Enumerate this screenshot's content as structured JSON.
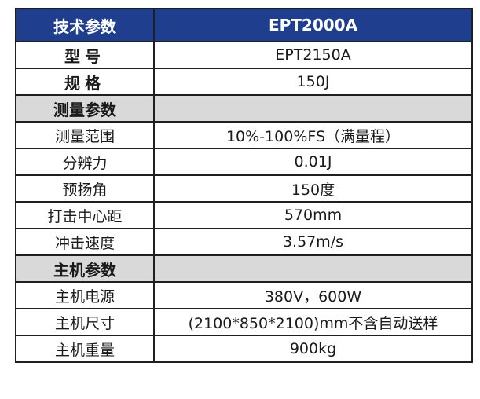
{
  "header": {
    "label": "技术参数",
    "value": "EPT2000A"
  },
  "rows": [
    {
      "label": "型号",
      "value": "EPT2150A"
    },
    {
      "label": "规格",
      "value": "150J"
    }
  ],
  "measurement": {
    "title": "测量参数",
    "rows": [
      {
        "label": "测量范围",
        "value": "10%-100%FS（满量程）"
      },
      {
        "label": "分辨力",
        "value": "0.01J"
      },
      {
        "label": "预扬角",
        "value": "150度"
      },
      {
        "label": "打击中心距",
        "value": "570mm"
      },
      {
        "label": "冲击速度",
        "value": "3.57m/s"
      }
    ]
  },
  "host": {
    "title": "主机参数",
    "rows": [
      {
        "label": "主机电源",
        "value": "380V，600W"
      },
      {
        "label": "主机尺寸",
        "value": "(2100*850*2100)mm不含自动送样"
      },
      {
        "label": "主机重量",
        "value": "900kg"
      }
    ]
  }
}
